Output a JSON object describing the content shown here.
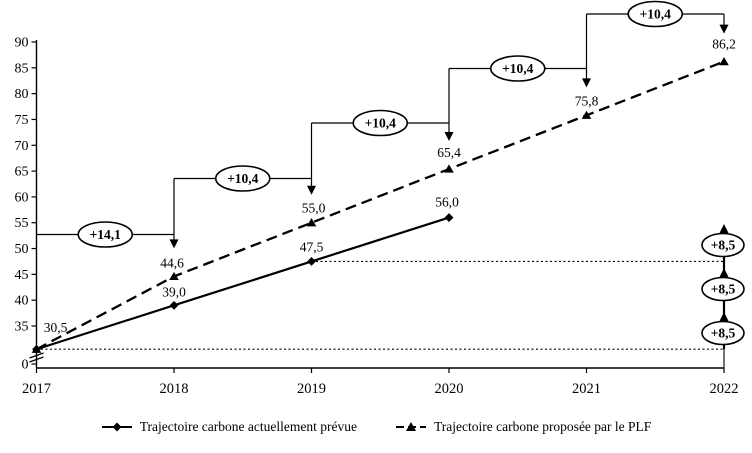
{
  "chart_data": {
    "type": "line",
    "title": "",
    "categories": [
      "2017",
      "2018",
      "2019",
      "2020",
      "2021",
      "2022"
    ],
    "y_axis": {
      "tick_labels": [
        "90",
        "85",
        "80",
        "75",
        "70",
        "65",
        "60",
        "55",
        "50",
        "45",
        "40",
        "35"
      ],
      "tick_values": [
        90,
        85,
        80,
        75,
        70,
        65,
        60,
        55,
        50,
        45,
        40,
        35
      ],
      "origin_label": "0",
      "axis_break": true,
      "ylim_visible": [
        35,
        90
      ]
    },
    "series": [
      {
        "name": "Trajectoire carbone actuellement prévue",
        "line_style": "solid",
        "marker": "diamond",
        "x": [
          "2017",
          "2018",
          "2019",
          "2020"
        ],
        "values": [
          30.5,
          39.0,
          47.5,
          56.0
        ],
        "point_labels": [
          "30,5",
          "39,0",
          "47,5",
          "56,0"
        ]
      },
      {
        "name": "Trajectoire carbone proposée par le PLF",
        "line_style": "dashed",
        "marker": "triangle",
        "x": [
          "2017",
          "2018",
          "2019",
          "2020",
          "2021",
          "2022"
        ],
        "values": [
          30.5,
          44.6,
          55.0,
          65.4,
          75.8,
          86.2
        ],
        "point_labels": [
          "",
          "44,6",
          "55,0",
          "65,4",
          "75,8",
          "86,2"
        ]
      }
    ],
    "step_annotations": [
      {
        "label": "+14,1",
        "value": 14.1,
        "from": "2017",
        "to": "2018"
      },
      {
        "label": "+10,4",
        "value": 10.4,
        "from": "2018",
        "to": "2019"
      },
      {
        "label": "+10,4",
        "value": 10.4,
        "from": "2019",
        "to": "2020"
      },
      {
        "label": "+10,4",
        "value": 10.4,
        "from": "2020",
        "to": "2021"
      },
      {
        "label": "+10,4",
        "value": 10.4,
        "from": "2021",
        "to": "2022"
      }
    ],
    "right_step_annotations": {
      "labels": [
        "+8,5",
        "+8,5",
        "+8,5"
      ],
      "values": [
        8.5,
        8.5,
        8.5
      ]
    },
    "reference_lines": [
      30.5,
      47.5
    ],
    "legend_position": "bottom",
    "colors": {
      "line": "#000000",
      "background": "#ffffff"
    }
  }
}
